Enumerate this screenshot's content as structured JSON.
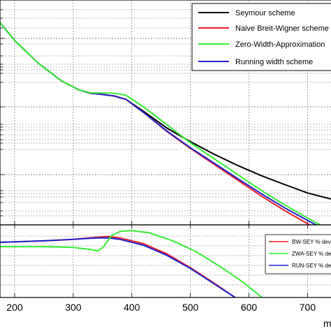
{
  "colors": {
    "seymour": "#000000",
    "breit_wigner": "#e8202a",
    "zwa": "#33ee33",
    "running_width": "#2222cc",
    "grid": "#666666",
    "frame": "#000000"
  },
  "chart_data": [
    {
      "type": "line",
      "title": "",
      "xlabel": "",
      "ylabel": "",
      "xlim": [
        175,
        740
      ],
      "ylim": [
        0,
        100
      ],
      "grid": true,
      "legend_placement": "top-right",
      "series": [
        {
          "name": "Seymour scheme",
          "color_key": "seymour",
          "x": [
            175,
            200,
            240,
            280,
            310,
            330,
            350,
            370,
            390,
            420,
            460,
            500,
            540,
            580,
            620,
            660,
            700,
            740
          ],
          "y": [
            90,
            82,
            72,
            64,
            60,
            58.5,
            58,
            57.3,
            55.8,
            50.5,
            43,
            37,
            31.5,
            26.5,
            22,
            18,
            14.2,
            11.5
          ]
        },
        {
          "name": "Naive Breit-Wigner scheme",
          "color_key": "breit_wigner",
          "x": [
            175,
            200,
            240,
            280,
            310,
            330,
            350,
            370,
            390,
            420,
            460,
            500,
            540,
            580,
            620,
            660,
            700,
            740
          ],
          "y": [
            90,
            82,
            72,
            64,
            60,
            58.5,
            58,
            57.3,
            55.8,
            50,
            41.5,
            34,
            27,
            20,
            13,
            6.5,
            0.5,
            -5
          ]
        },
        {
          "name": "Zero-Width-Approximation",
          "color_key": "zwa",
          "x": [
            175,
            200,
            240,
            280,
            310,
            330,
            350,
            370,
            390,
            420,
            460,
            500,
            540,
            580,
            620,
            660,
            700,
            740
          ],
          "y": [
            90,
            82,
            72,
            64,
            60,
            58.7,
            58.6,
            58.6,
            57.6,
            52.5,
            44.5,
            36.5,
            29.5,
            22.5,
            15.5,
            9,
            3,
            -2.5
          ]
        },
        {
          "name": "Running width scheme",
          "color_key": "running_width",
          "x": [
            175,
            200,
            240,
            280,
            310,
            330,
            350,
            370,
            390,
            420,
            460,
            500,
            540,
            580,
            620,
            660,
            700,
            740
          ],
          "y": [
            90,
            82,
            72,
            64,
            60,
            58.5,
            58,
            57.3,
            55.8,
            50,
            41.7,
            34.3,
            27.5,
            20.7,
            14,
            7.7,
            2,
            -3.5
          ]
        }
      ]
    },
    {
      "type": "line",
      "title": "",
      "xlabel": "",
      "ylabel": "",
      "xlim": [
        175,
        740
      ],
      "ylim": [
        0,
        100
      ],
      "grid": true,
      "legend_placement": "top-right",
      "x_ticks": [
        "200",
        "300",
        "400",
        "500",
        "600",
        "700"
      ],
      "x_tick_values": [
        200,
        300,
        400,
        500,
        600,
        700
      ],
      "series": [
        {
          "name": "BW-SEY % deviation",
          "color_key": "breit_wigner",
          "x": [
            175,
            250,
            300,
            340,
            360,
            380,
            420,
            460,
            500,
            540,
            580,
            600
          ],
          "y": [
            76,
            78,
            80,
            83,
            84,
            82,
            74,
            60,
            41,
            20,
            -2,
            -14
          ]
        },
        {
          "name": "ZWA-SEY % deviation",
          "color_key": "zwa",
          "x": [
            175,
            250,
            300,
            330,
            342,
            352,
            365,
            380,
            400,
            430,
            470,
            510,
            550,
            590,
            630
          ],
          "y": [
            70,
            70,
            69,
            66,
            64,
            70,
            85,
            91,
            92,
            89,
            78,
            63,
            43,
            21,
            -5
          ]
        },
        {
          "name": "RUN-SEY % deviation",
          "color_key": "running_width",
          "x": [
            175,
            250,
            300,
            340,
            360,
            380,
            420,
            460,
            500,
            540,
            580,
            600
          ],
          "y": [
            76,
            78,
            80,
            82,
            82,
            80,
            72,
            58,
            40,
            19,
            -2,
            -14
          ]
        }
      ]
    }
  ],
  "legend_top": [
    "Seymour scheme",
    "Naive Breit-Wigner scheme",
    "Zero-Width-Approximation",
    "Running width scheme"
  ],
  "legend_bottom": [
    "BW-SEY % deviation",
    "ZWA-SEY % deviation",
    "RUN-SEY % deviation"
  ],
  "x_axis_partial_label": "m"
}
